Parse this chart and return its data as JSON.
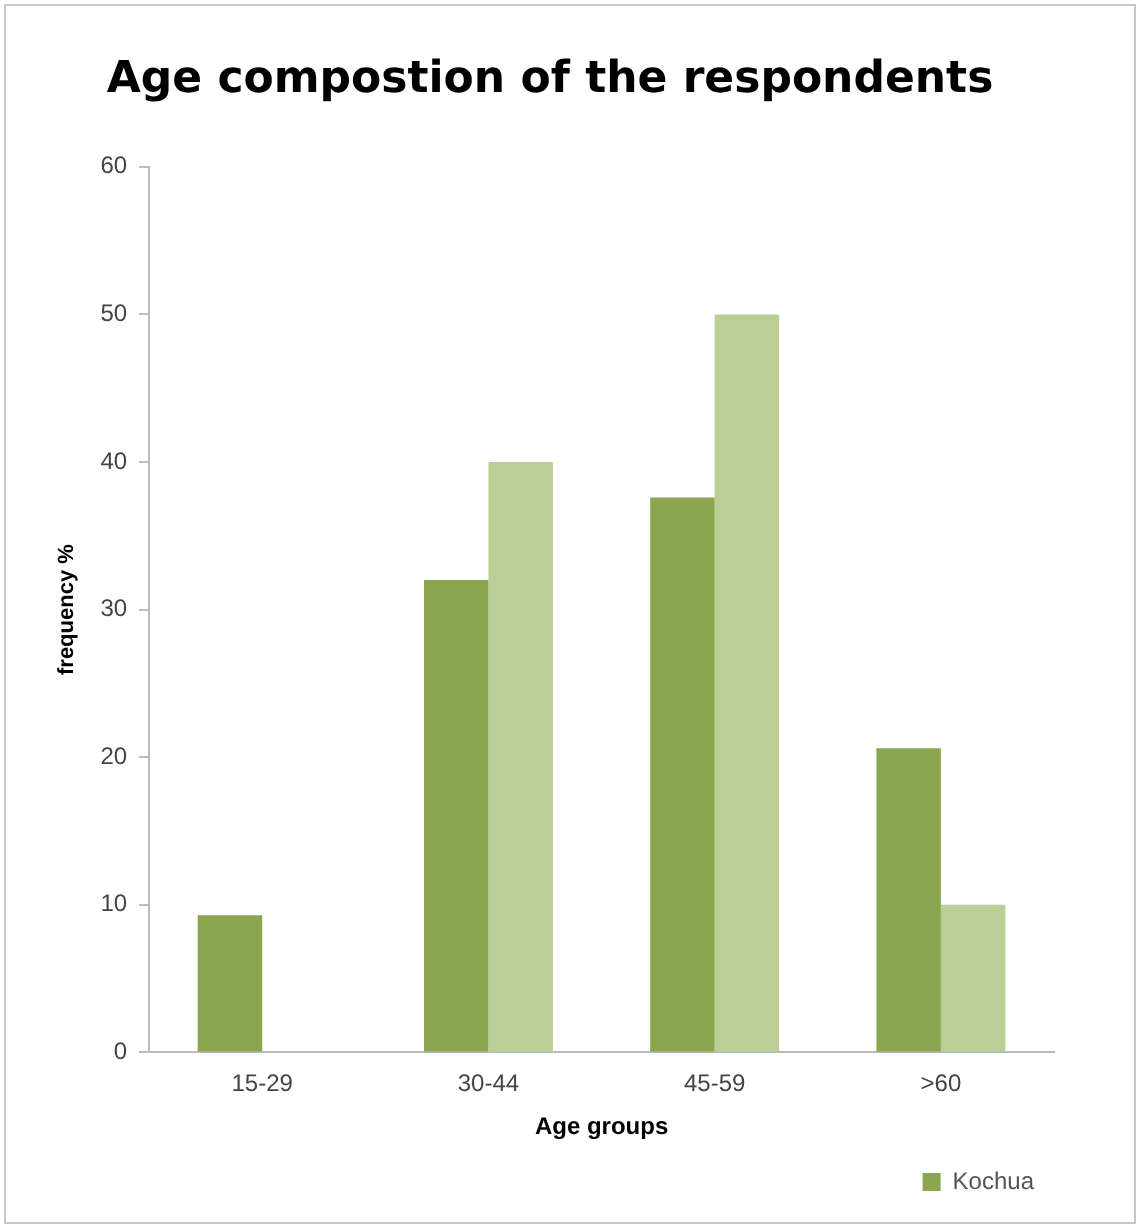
{
  "chart_data": {
    "type": "bar",
    "title": "Age compostion of the respondents",
    "xlabel": "Age groups",
    "ylabel": "frequency %",
    "categories": [
      "15-29",
      "30-44",
      "45-59",
      ">60"
    ],
    "series": [
      {
        "name": "Kochua",
        "color": "#8aa64f",
        "values": [
          9.3,
          32,
          37.6,
          20.6
        ]
      },
      {
        "color": "#b9cf95",
        "values": [
          0,
          40,
          50,
          10
        ]
      }
    ],
    "ylim": [
      0,
      60
    ],
    "yticks": [
      0,
      10,
      20,
      30,
      40,
      50,
      60
    ],
    "grid": false,
    "legend": "bottom right"
  }
}
